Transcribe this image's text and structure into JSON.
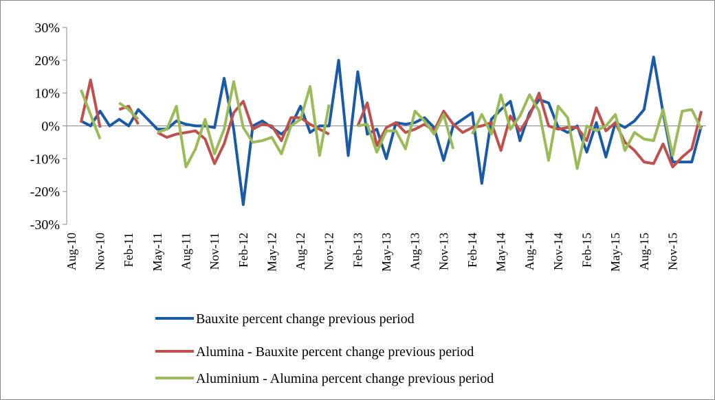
{
  "chart_data": {
    "type": "line",
    "categories": [
      "Aug-10",
      null,
      null,
      "Nov-10",
      null,
      null,
      "Feb-11",
      null,
      null,
      "May-11",
      null,
      null,
      "Aug-11",
      null,
      null,
      "Nov-11",
      null,
      null,
      "Feb-12",
      null,
      null,
      "May-12",
      null,
      null,
      "Aug-12",
      null,
      null,
      "Nov-12",
      null,
      null,
      "Feb-13",
      null,
      null,
      "May-13",
      null,
      null,
      "Aug-13",
      null,
      null,
      "Nov-13",
      null,
      null,
      "Feb-14",
      null,
      null,
      "May-14",
      null,
      null,
      "Aug-14",
      null,
      null,
      "Nov-14",
      null,
      null,
      "Feb-15",
      null,
      null,
      "May-15",
      null,
      null,
      "Aug-15",
      null,
      null,
      "Nov-15",
      null,
      null,
      null
    ],
    "series": [
      {
        "name": "Bauxite percent change previous period",
        "color": "#1a5aa6",
        "values": [
          null,
          1.5,
          0,
          4.5,
          0,
          2,
          0,
          5,
          2,
          -1,
          -1,
          1.5,
          0.5,
          0,
          0,
          -0.5,
          14.5,
          -1,
          -24,
          0,
          1.5,
          -0.5,
          -2.5,
          0,
          6,
          -2,
          0,
          0,
          20,
          -9,
          16.5,
          -2.5,
          -1,
          -10,
          1,
          0.5,
          1,
          2.5,
          -0.5,
          -10.5,
          0,
          2,
          4,
          -17.5,
          2,
          5,
          7.5,
          -4.5,
          4,
          8,
          7,
          -0.5,
          -2,
          0,
          -8,
          1,
          -9.5,
          1,
          -0.5,
          1.5,
          5,
          21,
          4,
          -11,
          -11,
          -11,
          0
        ]
      },
      {
        "name": "Alumina - Bauxite percent change previous period",
        "color": "#c0504d",
        "values": [
          null,
          1,
          14,
          -0.5,
          null,
          5,
          6,
          0.5,
          null,
          -2,
          -3.5,
          -2.5,
          -2,
          -1.5,
          -4,
          -11.5,
          -5.5,
          4,
          7.5,
          -1,
          0.5,
          0,
          -4.5,
          2.5,
          2.5,
          0.5,
          -1,
          -2.5,
          null,
          null,
          0,
          7,
          -6,
          -0.5,
          1,
          -2,
          -1,
          0.5,
          -1.5,
          4.5,
          0.5,
          -2,
          -0.5,
          0,
          1,
          -7.5,
          3,
          -1.5,
          3,
          10,
          0,
          -1,
          -0.5,
          -0.5,
          -4.5,
          5.5,
          -1.5,
          1,
          -5,
          -7.5,
          -11,
          -11.5,
          -5.5,
          -12.5,
          -9.5,
          -7,
          4.5
        ]
      },
      {
        "name": "Aluminium - Alumina percent change previous period",
        "color": "#9bbb59",
        "values": [
          null,
          11,
          3.5,
          -4,
          null,
          7,
          5,
          2,
          null,
          -2,
          -1,
          6,
          -12.5,
          -7,
          2,
          -8.5,
          -1,
          13.5,
          -0.5,
          -5,
          -4.5,
          -3.5,
          -8.5,
          0,
          2,
          12,
          -9,
          6.5,
          null,
          null,
          0,
          0.5,
          -8,
          -1.5,
          -1.5,
          -7,
          4.5,
          1.5,
          -2.5,
          3.5,
          -7,
          null,
          -2.5,
          3.5,
          -2.5,
          9.5,
          -1,
          3,
          9.5,
          4.5,
          -10.5,
          6,
          2.5,
          -13,
          0,
          -1.5,
          0,
          3.5,
          -7.5,
          -2,
          -4,
          -4.5,
          5,
          -9,
          4.5,
          5,
          -1
        ]
      }
    ],
    "ylim": [
      -30,
      30
    ],
    "yticks": [
      {
        "value": -30,
        "label": "-30%"
      },
      {
        "value": -20,
        "label": "-20%"
      },
      {
        "value": -10,
        "label": "-10%"
      },
      {
        "value": 0,
        "label": "0%"
      },
      {
        "value": 10,
        "label": "10%"
      },
      {
        "value": 20,
        "label": "20%"
      },
      {
        "value": 30,
        "label": "30%"
      }
    ],
    "legend": "bottom"
  }
}
